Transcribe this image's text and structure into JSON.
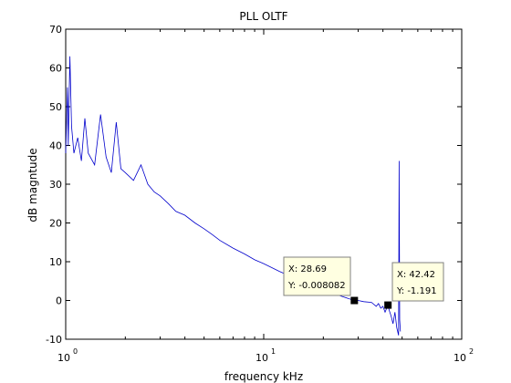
{
  "chart_data": {
    "type": "line",
    "title": "PLL OLTF",
    "xlabel": "frequency kHz",
    "ylabel": "dB magntude",
    "x_scale": "log",
    "xlim": [
      1,
      100
    ],
    "ylim": [
      -10,
      70
    ],
    "y_ticks": [
      {
        "value": -10,
        "label": "-10"
      },
      {
        "value": 0,
        "label": "0"
      },
      {
        "value": 10,
        "label": "10"
      },
      {
        "value": 20,
        "label": "20"
      },
      {
        "value": 30,
        "label": "30"
      },
      {
        "value": 40,
        "label": "40"
      },
      {
        "value": 50,
        "label": "50"
      },
      {
        "value": 60,
        "label": "60"
      },
      {
        "value": 70,
        "label": "70"
      }
    ],
    "x_ticks": [
      {
        "value": 1,
        "base": "10",
        "exp": "0"
      },
      {
        "value": 10,
        "base": "10",
        "exp": "1"
      },
      {
        "value": 100,
        "base": "10",
        "exp": "2"
      }
    ],
    "grid": false,
    "line_color": "#0000cc",
    "series": [
      {
        "x": [
          1.0,
          1.02,
          1.03,
          1.05,
          1.07,
          1.1,
          1.15,
          1.2,
          1.25,
          1.3,
          1.4,
          1.5,
          1.6,
          1.7,
          1.8,
          1.9,
          2.0,
          2.2,
          2.4,
          2.6,
          2.8,
          3.0,
          3.3,
          3.6,
          4.0,
          4.5,
          5.0,
          5.5,
          6.0,
          7.0,
          8.0,
          9.0,
          10.0,
          12.0,
          14.0,
          16.0,
          18.0,
          20.0,
          22.0,
          25.0,
          28.69,
          30.0,
          32.0,
          35.0,
          37.0,
          38.0,
          39.0,
          40.0,
          41.0,
          42.42,
          43.0,
          44.0,
          45.0,
          46.0,
          47.0,
          47.5,
          48.0,
          48.3,
          48.6,
          49.0
        ],
        "y": [
          38,
          55,
          40,
          63,
          45,
          38,
          42,
          36,
          47,
          38,
          35,
          48,
          37,
          33,
          46,
          34,
          33,
          31,
          35,
          30,
          28,
          27,
          25,
          23,
          22,
          20,
          18.5,
          17,
          15.5,
          13.5,
          12,
          10.5,
          9.5,
          7.5,
          6,
          4.5,
          3.5,
          2.5,
          2,
          1,
          -0.008082,
          0,
          -0.3,
          -0.5,
          -1.5,
          -0.8,
          -2,
          -1.5,
          -3,
          -1.191,
          -2.5,
          -4,
          -6,
          -3,
          -7,
          -8,
          -9,
          36,
          -5,
          -8
        ]
      }
    ],
    "annotations": [
      {
        "x": 28.69,
        "y": -0.008082,
        "x_text": "X: 28.69",
        "y_text": "Y: -0.008082"
      },
      {
        "x": 42.42,
        "y": -1.191,
        "x_text": "X: 42.42",
        "y_text": "Y: -1.191"
      }
    ]
  }
}
